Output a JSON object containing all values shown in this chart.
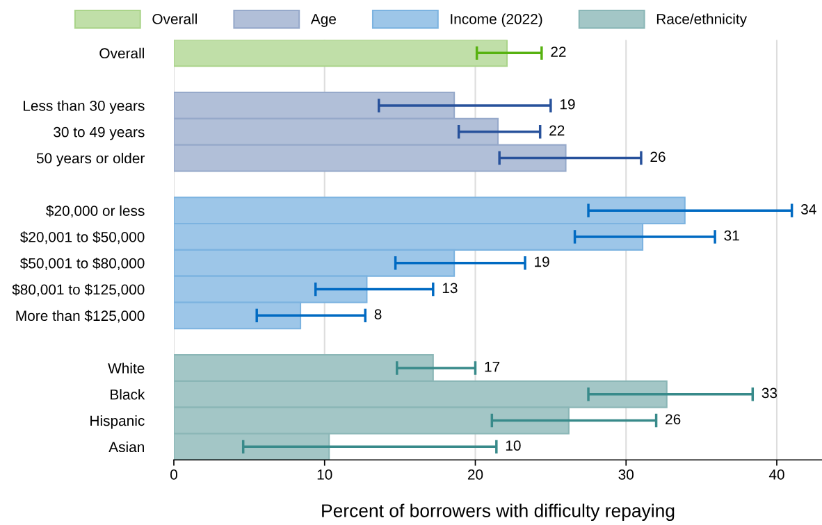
{
  "chart_data": {
    "type": "bar",
    "orientation": "horizontal",
    "categories": [
      "Overall",
      null,
      "Less than 30 years",
      "30 to 49 years",
      "50 years or older",
      null,
      "$20,000 or less",
      "$20,001 to $50,000",
      "$50,001 to $80,000",
      "$80,001 to $125,000",
      "More than $125,000",
      null,
      "White",
      "Black",
      "Hispanic",
      "Asian"
    ],
    "series": [
      {
        "name": "Overall",
        "color": "#c0dfa8",
        "values": [
          22.1,
          null,
          null,
          null,
          null,
          null,
          null,
          null,
          null,
          null,
          null,
          null,
          null,
          null,
          null,
          null
        ],
        "errors": [
          [
            20.1,
            24.4
          ],
          null,
          null,
          null,
          null,
          null,
          null,
          null,
          null,
          null,
          null,
          null,
          null,
          null,
          null,
          null
        ]
      },
      {
        "name": "Age",
        "color": "#b1bfd8",
        "values": [
          null,
          null,
          18.6,
          21.5,
          26.0,
          null,
          null,
          null,
          null,
          null,
          null,
          null,
          null,
          null,
          null,
          null
        ],
        "errors": [
          null,
          null,
          [
            13.6,
            25.0
          ],
          [
            18.9,
            24.3
          ],
          [
            21.6,
            31.0
          ],
          null,
          null,
          null,
          null,
          null,
          null,
          null,
          null,
          null,
          null,
          null
        ]
      },
      {
        "name": "Income (2022)",
        "color": "#9dc6e8",
        "values": [
          null,
          null,
          null,
          null,
          null,
          null,
          33.9,
          31.1,
          18.6,
          12.8,
          8.4,
          null,
          null,
          null,
          null,
          null
        ],
        "errors": [
          null,
          null,
          null,
          null,
          null,
          null,
          [
            27.5,
            41.0
          ],
          [
            26.6,
            35.9
          ],
          [
            14.7,
            23.3
          ],
          [
            9.4,
            17.2
          ],
          [
            5.5,
            12.7
          ],
          null,
          null,
          null,
          null,
          null
        ]
      },
      {
        "name": "Race/ethnicity",
        "color": "#a3c6c6",
        "values": [
          null,
          null,
          null,
          null,
          null,
          null,
          null,
          null,
          null,
          null,
          null,
          null,
          17.2,
          32.7,
          26.2,
          10.3
        ],
        "errors": [
          null,
          null,
          null,
          null,
          null,
          null,
          null,
          null,
          null,
          null,
          null,
          null,
          [
            14.8,
            20.0
          ],
          [
            27.5,
            38.4
          ],
          [
            21.1,
            32.0
          ],
          [
            4.6,
            21.4
          ]
        ]
      }
    ],
    "annotations": [
      {
        "text": "22",
        "x": 24.4,
        "y": "Overall"
      },
      {
        "text": "19",
        "x": 25.0,
        "y": "Less than 30 years"
      },
      {
        "text": "22",
        "x": 24.3,
        "y": "30 to 49 years"
      },
      {
        "text": "26",
        "x": 31.0,
        "y": "50 years or older"
      },
      {
        "text": "34",
        "x": 41.0,
        "y": "$20,000 or less"
      },
      {
        "text": "31",
        "x": 35.9,
        "y": "$20,001 to $50,000"
      },
      {
        "text": "19",
        "x": 23.3,
        "y": "$50,001 to $80,000"
      },
      {
        "text": "13",
        "x": 17.2,
        "y": "$80,001 to $125,000"
      },
      {
        "text": "8",
        "x": 12.7,
        "y": "More than $125,000"
      },
      {
        "text": "17",
        "x": 20.0,
        "y": "White"
      },
      {
        "text": "33",
        "x": 38.4,
        "y": "Black"
      },
      {
        "text": "26",
        "x": 32.0,
        "y": "Hispanic"
      },
      {
        "text": "10",
        "x": 21.4,
        "y": "Asian"
      }
    ],
    "xlabel": "Percent of borrowers with difficulty repaying",
    "xlim": [
      0,
      43
    ],
    "xticks": [
      0,
      10,
      20,
      30,
      40
    ],
    "grid": "x",
    "legend": "top"
  }
}
